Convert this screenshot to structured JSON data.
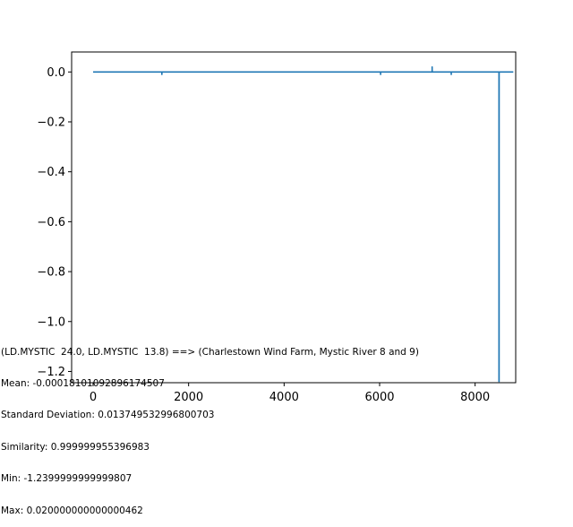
{
  "chart_data": {
    "type": "line",
    "title": "",
    "xlabel": "",
    "ylabel": "",
    "xlim": [
      -450,
      8850
    ],
    "ylim": [
      -1.245,
      0.08
    ],
    "x_ticks": [
      0,
      2000,
      4000,
      6000,
      8000
    ],
    "y_ticks": [
      0.0,
      -0.2,
      -0.4,
      -0.6,
      -0.8,
      -1.0,
      -1.2
    ],
    "x_tick_labels": [
      "0",
      "2000",
      "4000",
      "6000",
      "8000"
    ],
    "y_tick_labels": [
      "0.0",
      "−0.2",
      "−0.4",
      "−0.6",
      "−0.8",
      "−1.0",
      "−1.2"
    ],
    "grid": false,
    "color": "#1f77b4",
    "series": [
      {
        "x": [
          0,
          1440,
          1440,
          1441,
          6020,
          6020,
          6021,
          7100,
          7100,
          7101,
          7500,
          7500,
          7501,
          8500,
          8500,
          8501,
          8502,
          8502,
          8503,
          8800
        ],
        "y": [
          0.0,
          0.0,
          -0.01,
          0.0,
          0.0,
          -0.01,
          0.0,
          0.0,
          0.02,
          0.0,
          0.0,
          -0.01,
          0.0,
          0.0,
          -1.24,
          0.0,
          0.0,
          -1.24,
          0.0,
          0.0
        ]
      }
    ]
  },
  "stats": {
    "line1": "(LD.MYSTIC  24.0, LD.MYSTIC  13.8) ==> (Charlestown Wind Farm, Mystic River 8 and 9)",
    "line2": "Mean: -0.00018101092896174507",
    "line3": "Standard Deviation: 0.013749532996800703",
    "line4": "Similarity: 0.999999955396983",
    "line5": "Min: -1.2399999999999807",
    "line6": "Max: 0.020000000000000462"
  }
}
